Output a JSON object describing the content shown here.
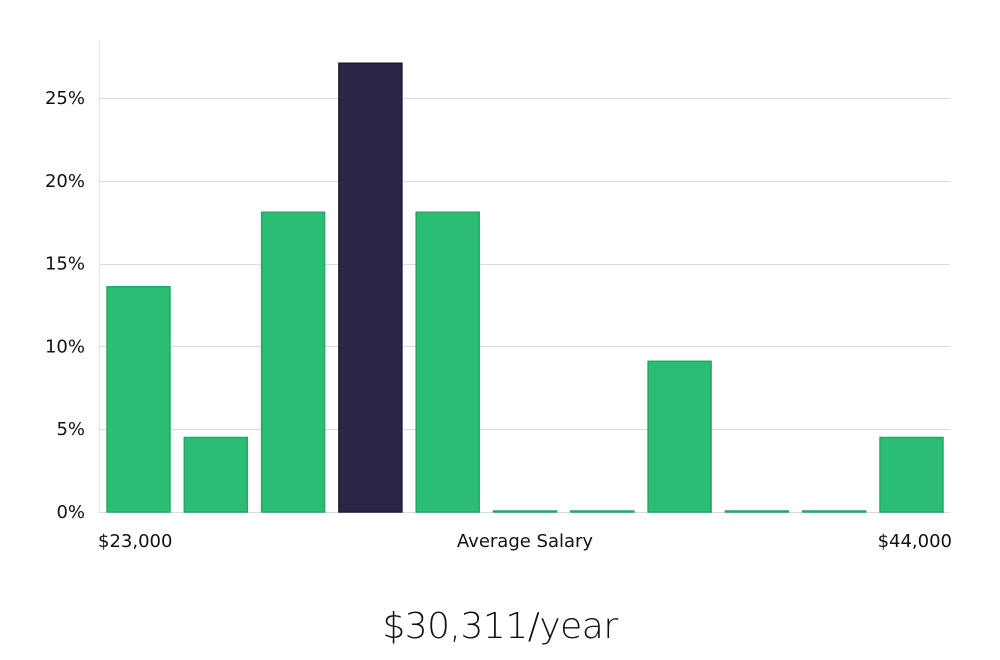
{
  "chart_data": {
    "type": "bar",
    "y_ticks": [
      "0%",
      "5%",
      "10%",
      "15%",
      "20%",
      "25%"
    ],
    "y_tick_values": [
      0,
      5,
      10,
      15,
      20,
      25
    ],
    "ylim": [
      0,
      28.5
    ],
    "values": [
      13.6,
      4.5,
      18.1,
      27.1,
      18.1,
      0,
      0,
      9.1,
      0,
      0,
      4.5
    ],
    "highlight_index": 3,
    "x_labels": {
      "left": "$23,000",
      "center": "Average Salary",
      "right": "$44,000"
    },
    "grid": true,
    "colors": {
      "bar": "#2bbd73",
      "bar_edge": "#22a862",
      "highlight": "#2a2646",
      "highlight_edge": "#1d1a38"
    }
  },
  "summary": {
    "average_salary": "$30,311/year"
  }
}
